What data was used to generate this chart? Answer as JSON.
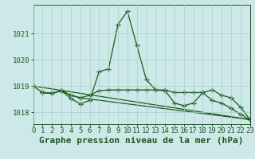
{
  "background_color": "#cce8e8",
  "line_color": "#1a5c1a",
  "grid_color": "#aacece",
  "title": "Graphe pression niveau de la mer (hPa)",
  "xlim": [
    0,
    23
  ],
  "ylim": [
    1017.55,
    1022.1
  ],
  "yticks": [
    1018,
    1019,
    1020,
    1021
  ],
  "xticks": [
    0,
    1,
    2,
    3,
    4,
    5,
    6,
    7,
    8,
    9,
    10,
    11,
    12,
    13,
    14,
    15,
    16,
    17,
    18,
    19,
    20,
    21,
    22,
    23
  ],
  "series": [
    {
      "x": [
        0,
        1,
        2,
        3,
        4,
        5,
        6,
        7,
        8,
        9,
        10,
        11,
        12,
        13,
        14,
        15,
        16,
        17,
        18,
        19,
        20,
        21,
        22,
        23
      ],
      "y": [
        1019.0,
        1018.75,
        1018.72,
        1018.82,
        1018.52,
        1018.32,
        1018.45,
        1019.55,
        1019.65,
        1021.35,
        1021.85,
        1020.55,
        1019.25,
        1018.85,
        1018.82,
        1018.35,
        1018.25,
        1018.35,
        1018.75,
        1018.45,
        1018.35,
        1018.15,
        1017.92,
        1017.72
      ]
    },
    {
      "x": [
        1,
        2,
        3,
        4,
        5,
        6,
        7,
        8,
        9,
        10,
        11,
        12,
        13,
        14,
        15,
        16,
        17,
        18,
        19,
        20,
        21,
        22,
        23
      ],
      "y": [
        1018.75,
        1018.72,
        1018.82,
        1018.65,
        1018.55,
        1018.65,
        1018.82,
        1018.85,
        1018.85,
        1018.85,
        1018.85,
        1018.85,
        1018.85,
        1018.85,
        1018.75,
        1018.75,
        1018.75,
        1018.75,
        1018.85,
        1018.65,
        1018.55,
        1018.2,
        1017.72
      ]
    },
    {
      "x": [
        1,
        2,
        3,
        4,
        5,
        23
      ],
      "y": [
        1018.75,
        1018.72,
        1018.82,
        1018.65,
        1018.55,
        1017.72
      ]
    },
    {
      "x": [
        0,
        23
      ],
      "y": [
        1019.0,
        1017.72
      ]
    }
  ],
  "marker": "+",
  "markersize": 4,
  "linewidth": 0.9,
  "title_fontsize": 8,
  "tick_fontsize": 6.5
}
